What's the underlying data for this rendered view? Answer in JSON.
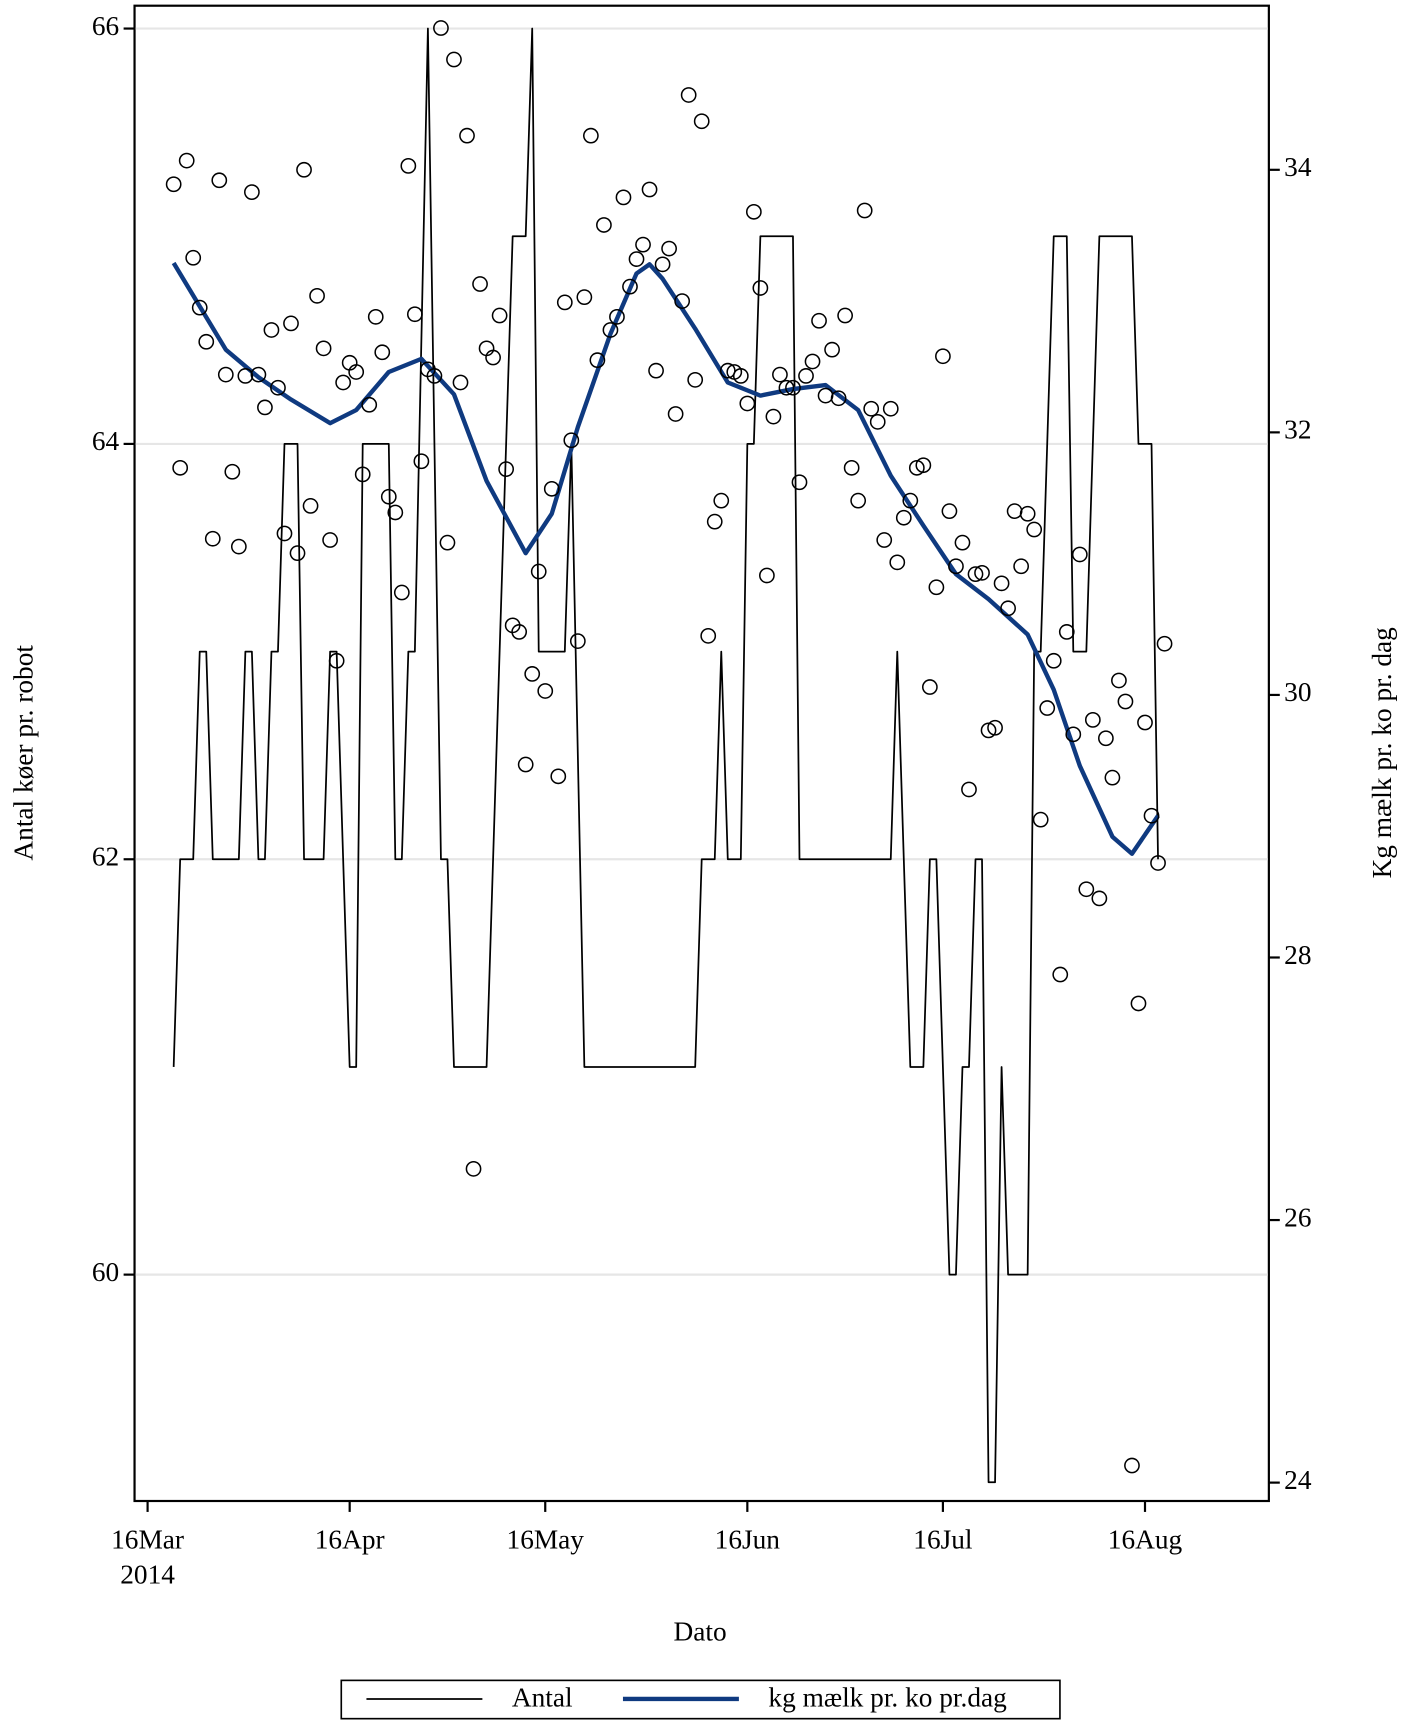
{
  "chart_data": {
    "type": "line",
    "xlabel": "Dato",
    "ylabel": "Antal køer pr. robot",
    "y2label": "Kg mælk pr. ko pr. dag",
    "xlim": [
      "2014-03-14",
      "2014-09-04"
    ],
    "xticks": [
      {
        "value": "2014-03-16",
        "label": "16Mar\n2014"
      },
      {
        "value": "2014-04-16",
        "label": "16Apr"
      },
      {
        "value": "2014-05-16",
        "label": "16May"
      },
      {
        "value": "2014-06-16",
        "label": "16Jun"
      },
      {
        "value": "2014-07-16",
        "label": "16Jul"
      },
      {
        "value": "2014-08-16",
        "label": "16Aug"
      }
    ],
    "ylim": [
      58.91,
      66.11
    ],
    "yticks": [
      60,
      62,
      64,
      66
    ],
    "y2lim": [
      23.86,
      35.25
    ],
    "y2ticks": [
      24,
      26,
      28,
      30,
      32,
      34
    ],
    "grid": true,
    "legend": "bottom",
    "series": [
      {
        "name": "Antal",
        "type": "line",
        "color": "#000000",
        "axis": "y",
        "x": [
          "2014-03-20",
          "2014-03-21",
          "2014-03-23",
          "2014-03-24",
          "2014-03-25",
          "2014-03-26",
          "2014-03-30",
          "2014-03-31",
          "2014-04-01",
          "2014-04-02",
          "2014-04-03",
          "2014-04-04",
          "2014-04-05",
          "2014-04-06",
          "2014-04-08",
          "2014-04-09",
          "2014-04-12",
          "2014-04-13",
          "2014-04-14",
          "2014-04-16",
          "2014-04-17",
          "2014-04-18",
          "2014-04-22",
          "2014-04-23",
          "2014-04-24",
          "2014-04-25",
          "2014-04-26",
          "2014-04-28",
          "2014-04-30",
          "2014-05-01",
          "2014-05-02",
          "2014-05-07",
          "2014-05-11",
          "2014-05-13",
          "2014-05-14",
          "2014-05-15",
          "2014-05-19",
          "2014-05-20",
          "2014-05-22",
          "2014-06-08",
          "2014-06-09",
          "2014-06-11",
          "2014-06-12",
          "2014-06-13",
          "2014-06-15",
          "2014-06-16",
          "2014-06-17",
          "2014-06-18",
          "2014-06-23",
          "2014-06-24",
          "2014-07-08",
          "2014-07-09",
          "2014-07-11",
          "2014-07-13",
          "2014-07-14",
          "2014-07-15",
          "2014-07-17",
          "2014-07-18",
          "2014-07-19",
          "2014-07-20",
          "2014-07-21",
          "2014-07-22",
          "2014-07-23",
          "2014-07-24",
          "2014-07-25",
          "2014-07-26",
          "2014-07-29",
          "2014-07-30",
          "2014-07-31",
          "2014-08-02",
          "2014-08-04",
          "2014-08-05",
          "2014-08-07",
          "2014-08-09",
          "2014-08-14",
          "2014-08-15",
          "2014-08-17",
          "2014-08-18"
        ],
        "values": [
          61,
          62,
          62,
          63,
          63,
          62,
          62,
          63,
          63,
          62,
          62,
          63,
          63,
          64,
          64,
          62,
          62,
          63,
          63,
          61,
          61,
          64,
          64,
          62,
          62,
          63,
          63,
          66,
          62,
          62,
          61,
          61,
          65,
          65,
          66,
          63,
          63,
          64,
          61,
          61,
          62,
          62,
          63,
          62,
          62,
          64,
          64,
          65,
          65,
          62,
          62,
          63,
          61,
          61,
          62,
          62,
          60,
          60,
          61,
          61,
          62,
          62,
          59,
          59,
          61,
          60,
          60,
          63,
          63,
          65,
          65,
          63,
          63,
          65,
          65,
          64,
          64,
          62
        ]
      },
      {
        "name": "kg mælk pr. ko pr.dag",
        "type": "line",
        "color": "#0f3a80",
        "axis": "y2",
        "x": [
          "2014-03-20",
          "2014-03-24",
          "2014-03-28",
          "2014-04-02",
          "2014-04-07",
          "2014-04-13",
          "2014-04-17",
          "2014-04-22",
          "2014-04-27",
          "2014-05-02",
          "2014-05-07",
          "2014-05-13",
          "2014-05-17",
          "2014-05-21",
          "2014-05-26",
          "2014-05-30",
          "2014-06-01",
          "2014-06-03",
          "2014-06-08",
          "2014-06-13",
          "2014-06-18",
          "2014-06-23",
          "2014-06-28",
          "2014-07-03",
          "2014-07-08",
          "2014-07-13",
          "2014-07-18",
          "2014-07-23",
          "2014-07-29",
          "2014-08-02",
          "2014-08-06",
          "2014-08-11",
          "2014-08-14",
          "2014-08-18"
        ],
        "values": [
          33.29,
          32.96,
          32.63,
          32.42,
          32.25,
          32.07,
          32.17,
          32.46,
          32.56,
          32.29,
          31.63,
          31.08,
          31.38,
          32.04,
          32.75,
          33.21,
          33.28,
          33.17,
          32.79,
          32.38,
          32.28,
          32.33,
          32.36,
          32.17,
          31.67,
          31.29,
          30.92,
          30.73,
          30.46,
          30.04,
          29.46,
          28.92,
          28.79,
          29.08
        ]
      },
      {
        "type": "scatter",
        "color": "#000000",
        "axis": "y2",
        "x": [
          "2014-03-20",
          "2014-03-21",
          "2014-03-22",
          "2014-03-23",
          "2014-03-24",
          "2014-03-25",
          "2014-03-26",
          "2014-03-27",
          "2014-03-28",
          "2014-03-29",
          "2014-03-30",
          "2014-03-31",
          "2014-04-01",
          "2014-04-02",
          "2014-04-03",
          "2014-04-04",
          "2014-04-05",
          "2014-04-06",
          "2014-04-07",
          "2014-04-08",
          "2014-04-09",
          "2014-04-10",
          "2014-04-11",
          "2014-04-12",
          "2014-04-13",
          "2014-04-14",
          "2014-04-15",
          "2014-04-16",
          "2014-04-17",
          "2014-04-18",
          "2014-04-19",
          "2014-04-20",
          "2014-04-21",
          "2014-04-22",
          "2014-04-23",
          "2014-04-24",
          "2014-04-25",
          "2014-04-26",
          "2014-04-27",
          "2014-04-28",
          "2014-04-29",
          "2014-04-30",
          "2014-05-01",
          "2014-05-02",
          "2014-05-03",
          "2014-05-04",
          "2014-05-05",
          "2014-05-06",
          "2014-05-07",
          "2014-05-08",
          "2014-05-09",
          "2014-05-10",
          "2014-05-11",
          "2014-05-12",
          "2014-05-13",
          "2014-05-14",
          "2014-05-15",
          "2014-05-16",
          "2014-05-17",
          "2014-05-18",
          "2014-05-19",
          "2014-05-20",
          "2014-05-21",
          "2014-05-22",
          "2014-05-23",
          "2014-05-24",
          "2014-05-25",
          "2014-05-26",
          "2014-05-27",
          "2014-05-28",
          "2014-05-29",
          "2014-05-30",
          "2014-05-31",
          "2014-06-01",
          "2014-06-02",
          "2014-06-03",
          "2014-06-04",
          "2014-06-05",
          "2014-06-06",
          "2014-06-07",
          "2014-06-08",
          "2014-06-09",
          "2014-06-10",
          "2014-06-11",
          "2014-06-12",
          "2014-06-13",
          "2014-06-14",
          "2014-06-15",
          "2014-06-16",
          "2014-06-17",
          "2014-06-18",
          "2014-06-19",
          "2014-06-20",
          "2014-06-21",
          "2014-06-22",
          "2014-06-23",
          "2014-06-24",
          "2014-06-25",
          "2014-06-26",
          "2014-06-27",
          "2014-06-28",
          "2014-06-29",
          "2014-06-30",
          "2014-07-01",
          "2014-07-02",
          "2014-07-03",
          "2014-07-04",
          "2014-07-05",
          "2014-07-06",
          "2014-07-07",
          "2014-07-08",
          "2014-07-09",
          "2014-07-10",
          "2014-07-11",
          "2014-07-12",
          "2014-07-13",
          "2014-07-14",
          "2014-07-15",
          "2014-07-16",
          "2014-07-17",
          "2014-07-18",
          "2014-07-19",
          "2014-07-20",
          "2014-07-21",
          "2014-07-22",
          "2014-07-23",
          "2014-07-24",
          "2014-07-25",
          "2014-07-26",
          "2014-07-27",
          "2014-07-28",
          "2014-07-29",
          "2014-07-30",
          "2014-07-31",
          "2014-08-01",
          "2014-08-02",
          "2014-08-03",
          "2014-08-04",
          "2014-08-05",
          "2014-08-06",
          "2014-08-07",
          "2014-08-08",
          "2014-08-09",
          "2014-08-10",
          "2014-08-11",
          "2014-08-12",
          "2014-08-13",
          "2014-08-14",
          "2014-08-15",
          "2014-08-16",
          "2014-08-17",
          "2014-08-18",
          "2014-08-19"
        ],
        "values": [
          33.89,
          31.73,
          34.07,
          33.33,
          32.95,
          32.69,
          31.19,
          33.92,
          32.44,
          31.7,
          31.13,
          32.43,
          33.83,
          32.44,
          32.19,
          32.78,
          32.34,
          31.23,
          32.83,
          31.08,
          34.0,
          31.44,
          33.04,
          32.64,
          31.18,
          30.26,
          32.38,
          32.53,
          32.46,
          31.68,
          32.21,
          32.88,
          32.61,
          31.51,
          31.39,
          30.78,
          34.03,
          32.9,
          31.78,
          32.48,
          32.43,
          35.08,
          31.16,
          34.84,
          32.38,
          34.26,
          26.39,
          33.13,
          32.64,
          32.57,
          32.89,
          31.72,
          30.53,
          30.48,
          29.47,
          30.16,
          30.94,
          30.03,
          31.57,
          29.38,
          32.99,
          31.94,
          30.41,
          33.03,
          34.26,
          32.55,
          33.58,
          32.78,
          32.88,
          33.79,
          33.11,
          33.32,
          33.43,
          33.85,
          32.47,
          33.28,
          33.4,
          32.14,
          33.0,
          34.57,
          32.4,
          34.37,
          30.45,
          31.32,
          31.48,
          32.47,
          32.46,
          32.43,
          32.22,
          33.68,
          33.1,
          30.91,
          32.12,
          32.44,
          32.34,
          32.34,
          31.62,
          32.43,
          32.54,
          32.85,
          32.28,
          32.63,
          32.26,
          32.89,
          31.73,
          31.48,
          33.69,
          32.18,
          32.08,
          31.18,
          32.18,
          31.01,
          31.35,
          31.48,
          31.73,
          31.75,
          30.06,
          30.82,
          32.58,
          31.4,
          30.98,
          31.16,
          29.28,
          30.92,
          30.93,
          29.73,
          29.75,
          30.85,
          30.66,
          31.4,
          30.98,
          31.38,
          31.26,
          29.05,
          29.9,
          30.26,
          27.87,
          30.48,
          29.7,
          31.07,
          28.52,
          29.81,
          28.45,
          29.67,
          29.37,
          30.11,
          29.95,
          24.13,
          27.65,
          29.79,
          29.08,
          28.72,
          30.39
        ]
      }
    ]
  }
}
